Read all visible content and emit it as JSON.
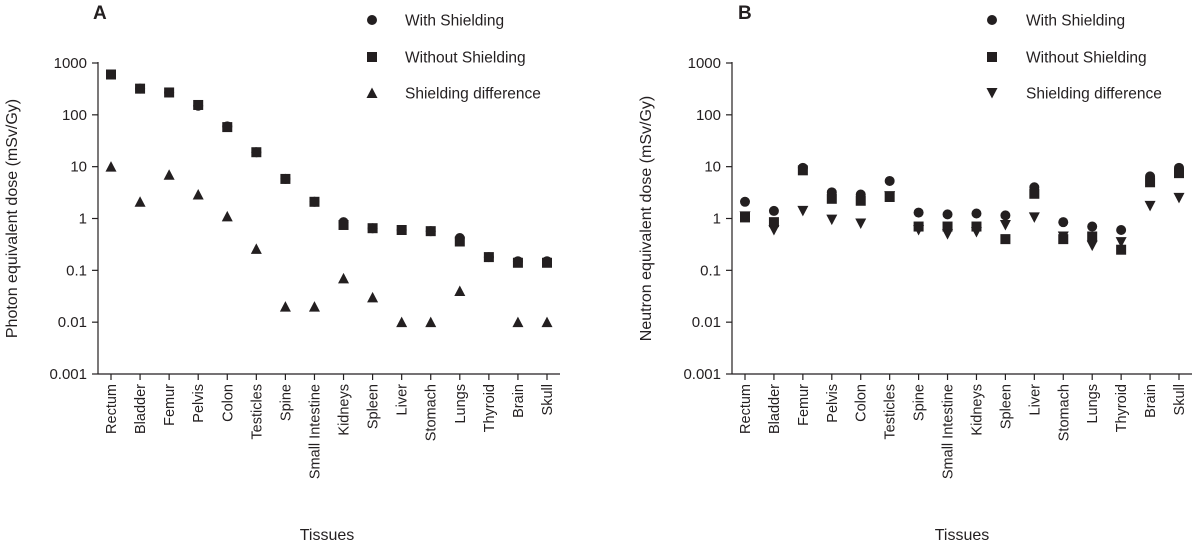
{
  "chart_data": [
    {
      "type": "scatter",
      "panel_label": "A",
      "title": "",
      "xlabel": "Tissues",
      "ylabel": "Photon equivalent dose (mSv/Gy)",
      "yscale": "log",
      "ylim": [
        0.001,
        1000
      ],
      "yticks": [
        "0.001",
        "0.01",
        "0.1",
        "1",
        "10",
        "100",
        "1000"
      ],
      "categories": [
        "Rectum",
        "Bladder",
        "Femur",
        "Pelvis",
        "Colon",
        "Testicles",
        "Spine",
        "Small Intestine",
        "Kidneys",
        "Spleen",
        "Liver",
        "Stomach",
        "Lungs",
        "Thyroid",
        "Brain",
        "Skull"
      ],
      "legend_position": "top-right",
      "series": [
        {
          "name": "With Shielding",
          "marker": "circle",
          "values": [
            600,
            320,
            270,
            150,
            60,
            19,
            5.8,
            2.1,
            0.85,
            0.65,
            0.6,
            0.57,
            0.42,
            0.18,
            0.15,
            0.15
          ]
        },
        {
          "name": "Without Shielding",
          "marker": "square",
          "values": [
            600,
            320,
            270,
            155,
            58,
            19,
            5.8,
            2.1,
            0.75,
            0.65,
            0.6,
            0.57,
            0.36,
            0.18,
            0.14,
            0.14
          ]
        },
        {
          "name": "Shielding difference",
          "marker": "triangle-up",
          "values": [
            10,
            2.1,
            7,
            2.9,
            1.1,
            0.26,
            0.02,
            0.02,
            0.07,
            0.03,
            0.01,
            0.01,
            0.04,
            null,
            0.01,
            0.01
          ]
        }
      ]
    },
    {
      "type": "scatter",
      "panel_label": "B",
      "title": "",
      "xlabel": "Tissues",
      "ylabel": "Neutron equivalent dose (mSv/Gy)",
      "yscale": "log",
      "ylim": [
        0.001,
        1000
      ],
      "yticks": [
        "0.001",
        "0.01",
        "0.1",
        "1",
        "10",
        "100",
        "1000"
      ],
      "categories": [
        "Rectum",
        "Bladder",
        "Femur",
        "Pelvis",
        "Colon",
        "Testicles",
        "Spine",
        "Small Intestine",
        "Kidneys",
        "Spleen",
        "Liver",
        "Stomach",
        "Lungs",
        "Thyroid",
        "Brain",
        "Skull"
      ],
      "legend_position": "top-right",
      "series": [
        {
          "name": "With Shielding",
          "marker": "circle",
          "values": [
            2.1,
            1.4,
            9.5,
            3.2,
            2.9,
            5.3,
            1.3,
            1.2,
            1.25,
            1.15,
            4,
            0.85,
            0.7,
            0.6,
            6.5,
            9.5
          ]
        },
        {
          "name": "Without Shielding",
          "marker": "square",
          "values": [
            1.05,
            0.85,
            8.5,
            2.4,
            2.2,
            2.6,
            0.7,
            0.7,
            0.7,
            0.4,
            3,
            0.4,
            0.45,
            0.25,
            5,
            7.5
          ]
        },
        {
          "name": "Shielding difference",
          "marker": "triangle-down",
          "values": [
            1.1,
            0.6,
            1.4,
            0.95,
            0.8,
            2.7,
            0.6,
            0.5,
            0.55,
            0.75,
            1.05,
            0.45,
            0.3,
            0.35,
            1.75,
            2.5
          ]
        }
      ]
    }
  ]
}
